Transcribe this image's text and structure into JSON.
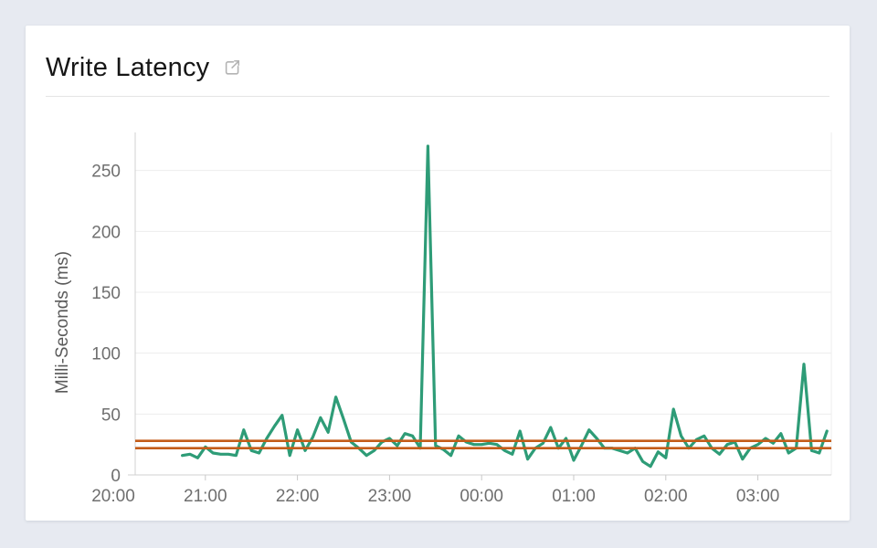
{
  "page": {
    "background": "#e7eaf1"
  },
  "card": {
    "title": "Write Latency",
    "background": "#ffffff",
    "popout_icon": "open-in-new-window"
  },
  "chart_data": {
    "type": "line",
    "title": "Write Latency",
    "xlabel": "",
    "ylabel": "Milli-Seconds (ms)",
    "x_tick_labels": [
      "20:00",
      "21:00",
      "22:00",
      "23:00",
      "00:00",
      "01:00",
      "02:00",
      "03:00"
    ],
    "y_ticks": [
      0,
      50,
      100,
      150,
      200,
      250
    ],
    "ylim": [
      0,
      281
    ],
    "x_range": [
      "20:00",
      "03:55"
    ],
    "grid": "horizontal",
    "legend": "none",
    "series": [
      {
        "name": "write-latency-ms",
        "color": "#2e9c77",
        "points": [
          [
            "20:45",
            16
          ],
          [
            "20:50",
            17
          ],
          [
            "20:55",
            14
          ],
          [
            "21:00",
            23
          ],
          [
            "21:05",
            18
          ],
          [
            "21:10",
            17
          ],
          [
            "21:15",
            17
          ],
          [
            "21:20",
            16
          ],
          [
            "21:25",
            37
          ],
          [
            "21:30",
            20
          ],
          [
            "21:35",
            18
          ],
          [
            "21:40",
            30
          ],
          [
            "21:45",
            40
          ],
          [
            "21:50",
            49
          ],
          [
            "21:55",
            16
          ],
          [
            "22:00",
            37
          ],
          [
            "22:05",
            20
          ],
          [
            "22:10",
            31
          ],
          [
            "22:15",
            47
          ],
          [
            "22:20",
            35
          ],
          [
            "22:25",
            64
          ],
          [
            "22:30",
            46
          ],
          [
            "22:35",
            27
          ],
          [
            "22:40",
            22
          ],
          [
            "22:45",
            16
          ],
          [
            "22:50",
            20
          ],
          [
            "22:55",
            27
          ],
          [
            "23:00",
            30
          ],
          [
            "23:05",
            24
          ],
          [
            "23:10",
            34
          ],
          [
            "23:15",
            32
          ],
          [
            "23:20",
            22
          ],
          [
            "23:25",
            270
          ],
          [
            "23:30",
            24
          ],
          [
            "23:35",
            21
          ],
          [
            "23:40",
            16
          ],
          [
            "23:45",
            32
          ],
          [
            "23:50",
            27
          ],
          [
            "23:55",
            25
          ],
          [
            "00:00",
            25
          ],
          [
            "00:05",
            26
          ],
          [
            "00:10",
            25
          ],
          [
            "00:15",
            20
          ],
          [
            "00:20",
            17
          ],
          [
            "00:25",
            36
          ],
          [
            "00:30",
            13
          ],
          [
            "00:35",
            22
          ],
          [
            "00:40",
            26
          ],
          [
            "00:45",
            39
          ],
          [
            "00:50",
            22
          ],
          [
            "00:55",
            30
          ],
          [
            "01:00",
            12
          ],
          [
            "01:05",
            24
          ],
          [
            "01:10",
            37
          ],
          [
            "01:15",
            30
          ],
          [
            "01:20",
            22
          ],
          [
            "01:25",
            22
          ],
          [
            "01:30",
            20
          ],
          [
            "01:35",
            18
          ],
          [
            "01:40",
            22
          ],
          [
            "01:45",
            11
          ],
          [
            "01:50",
            7
          ],
          [
            "01:55",
            19
          ],
          [
            "02:00",
            14
          ],
          [
            "02:05",
            54
          ],
          [
            "02:10",
            32
          ],
          [
            "02:15",
            22
          ],
          [
            "02:20",
            29
          ],
          [
            "02:25",
            32
          ],
          [
            "02:30",
            22
          ],
          [
            "02:35",
            17
          ],
          [
            "02:40",
            25
          ],
          [
            "02:45",
            27
          ],
          [
            "02:50",
            13
          ],
          [
            "02:55",
            22
          ],
          [
            "03:00",
            25
          ],
          [
            "03:05",
            30
          ],
          [
            "03:10",
            26
          ],
          [
            "03:15",
            34
          ],
          [
            "03:20",
            18
          ],
          [
            "03:25",
            22
          ],
          [
            "03:30",
            91
          ],
          [
            "03:35",
            20
          ],
          [
            "03:40",
            18
          ],
          [
            "03:45",
            36
          ]
        ]
      }
    ],
    "reference_lines": [
      {
        "name": "upper-threshold",
        "value": 28,
        "color": "#c45c19"
      },
      {
        "name": "lower-threshold",
        "value": 22,
        "color": "#c45c19"
      }
    ],
    "colors": {
      "line": "#2e9c77",
      "threshold": "#c45c19",
      "axis_text": "#6f6f6f",
      "grid_line": "#ededed"
    }
  }
}
